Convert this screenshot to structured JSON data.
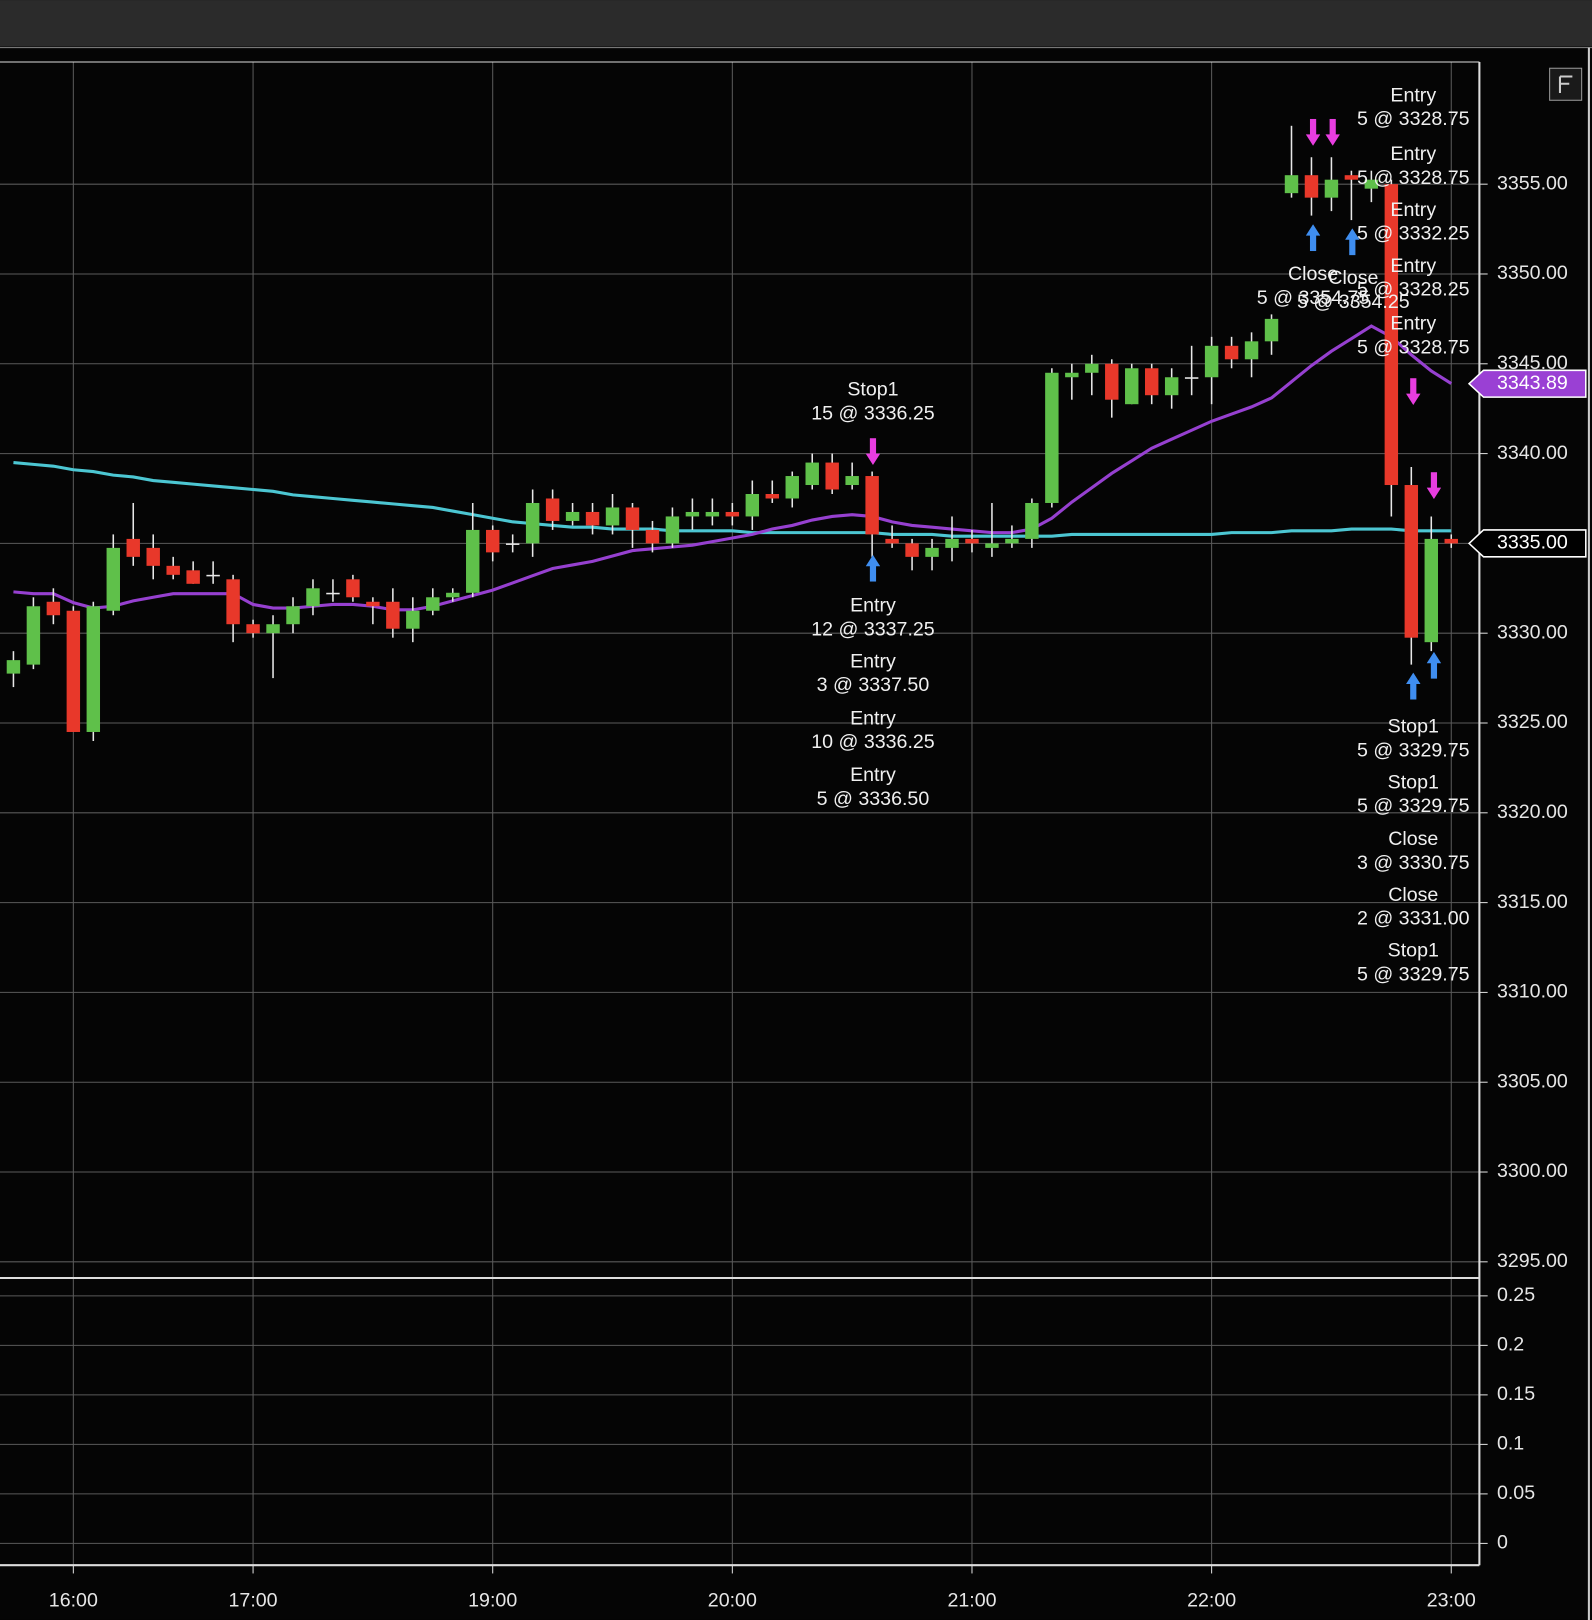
{
  "chart_data": [
    {
      "type": "candlestick",
      "categories": [
        null,
        null,
        null,
        "16:00",
        null,
        null,
        null,
        null,
        null,
        null,
        null,
        null,
        "17:00",
        null,
        null,
        null,
        null,
        null,
        null,
        null,
        null,
        null,
        null,
        null,
        "19:00",
        null,
        null,
        null,
        null,
        null,
        null,
        null,
        null,
        null,
        null,
        null,
        "20:00",
        null,
        null,
        null,
        null,
        null,
        null,
        null,
        null,
        null,
        null,
        null,
        "21:00",
        null,
        null,
        null,
        null,
        null,
        null,
        null,
        null,
        null,
        null,
        null,
        "22:00",
        null,
        null,
        null,
        null,
        null,
        null,
        null,
        null,
        null,
        null,
        null,
        "23:00"
      ],
      "open": [
        3327.75,
        3328.25,
        3331.75,
        3331.25,
        3324.5,
        3331.25,
        3335.25,
        3334.75,
        3333.75,
        3333.5,
        3333.25,
        3333,
        3330.5,
        3330,
        3330.5,
        3331.5,
        3332.25,
        3333,
        3331.75,
        3331.75,
        3330.25,
        3331.25,
        3332,
        3332.25,
        3335.75,
        3335,
        3335,
        3337.5,
        3336.25,
        3336.75,
        3336,
        3337,
        3335.75,
        3335,
        3336.5,
        3336.5,
        3336.75,
        3336.5,
        3337.75,
        3337.5,
        3338.25,
        3339.5,
        3338.25,
        3338.75,
        3335.25,
        3335,
        3334.25,
        3334.75,
        3335.25,
        3334.75,
        3335,
        3335.25,
        3337.25,
        3344.25,
        3344.5,
        3345,
        3342.75,
        3344.75,
        3343.25,
        3344.25,
        3344.25,
        3346,
        3345.25,
        3346.25,
        3354.5,
        3355.5,
        3354.25,
        3355.5,
        3354.75,
        3355,
        3338.25,
        3329.5,
        3335.25
      ],
      "high": [
        3329,
        3332,
        3332.5,
        3331.5,
        3331.75,
        3335.5,
        3337.25,
        3335.5,
        3334.25,
        3334,
        3334,
        3333.25,
        3330.75,
        3331,
        3332,
        3333,
        3333,
        3333.25,
        3332,
        3332.5,
        3332,
        3332.5,
        3332.5,
        3337.25,
        3336,
        3335.5,
        3338,
        3338,
        3337.25,
        3337.25,
        3337.75,
        3337.25,
        3336.25,
        3337,
        3337.5,
        3337.5,
        3337.25,
        3338.5,
        3338.5,
        3339,
        3340,
        3340,
        3339.5,
        3339,
        3336,
        3335.25,
        3335.25,
        3336.5,
        3335.75,
        3337.25,
        3336,
        3337.5,
        3344.75,
        3345,
        3345.5,
        3345.25,
        3345,
        3345,
        3344.75,
        3346,
        3346.5,
        3346.5,
        3346.75,
        3347.75,
        3358.25,
        3356.5,
        3356.5,
        3355.75,
        3355.75,
        3355.25,
        3339.25,
        3336.5,
        3335.5
      ],
      "low": [
        3327,
        3328,
        3330.5,
        3324.5,
        3324,
        3331,
        3333.75,
        3333,
        3333,
        3332.75,
        3332.75,
        3329.5,
        3329.75,
        3327.5,
        3330,
        3331,
        3331.75,
        3331.75,
        3330.5,
        3329.75,
        3329.5,
        3331,
        3331.75,
        3332,
        3334,
        3334.5,
        3334.25,
        3335.75,
        3336,
        3335.5,
        3335.5,
        3334.75,
        3334.5,
        3334.75,
        3335.75,
        3336,
        3336,
        3335.75,
        3337.25,
        3337,
        3338,
        3337.75,
        3338,
        3334.25,
        3334.75,
        3333.5,
        3333.5,
        3334,
        3334.5,
        3334.25,
        3334.75,
        3334.75,
        3337,
        3343,
        3343.25,
        3342,
        3342.75,
        3342.75,
        3342.5,
        3343.25,
        3342.75,
        3344.75,
        3344.25,
        3345.5,
        3354.25,
        3353.25,
        3353.5,
        3353,
        3354,
        3336.5,
        3328.25,
        3329,
        3334.75
      ],
      "close": [
        3328.5,
        3331.5,
        3331,
        3324.5,
        3331.5,
        3334.75,
        3334.25,
        3333.75,
        3333.25,
        3332.75,
        3333.25,
        3330.5,
        3330,
        3330.5,
        3331.5,
        3332.5,
        3332.25,
        3332,
        3331.5,
        3330.25,
        3331.25,
        3332,
        3332.25,
        3335.75,
        3334.5,
        3335,
        3337.25,
        3336.25,
        3336.75,
        3336,
        3337,
        3335.75,
        3335,
        3336.5,
        3336.75,
        3336.75,
        3336.5,
        3337.75,
        3337.5,
        3338.75,
        3339.5,
        3338,
        3338.75,
        3335.5,
        3335,
        3334.25,
        3334.75,
        3335.25,
        3335,
        3335,
        3335.25,
        3337.25,
        3344.5,
        3344.5,
        3345,
        3343,
        3344.75,
        3343.25,
        3344.25,
        3344.25,
        3346,
        3345.25,
        3346.25,
        3347.5,
        3355.5,
        3354.25,
        3355.25,
        3355.25,
        3355.25,
        3338.25,
        3329.75,
        3335.25,
        3335
      ],
      "up_color": "#5fc04a",
      "down_color": "#e8382a",
      "lines": [
        {
          "color": "#4cc6d2",
          "values": [
            3339.5,
            3339.4,
            3339.3,
            3339.1,
            3339.0,
            3338.8,
            3338.7,
            3338.5,
            3338.4,
            3338.3,
            3338.2,
            3338.1,
            3338.0,
            3337.9,
            3337.7,
            3337.6,
            3337.5,
            3337.4,
            3337.3,
            3337.2,
            3337.1,
            3337.0,
            3336.8,
            3336.6,
            3336.4,
            3336.2,
            3336.1,
            3336.0,
            3335.9,
            3335.9,
            3335.8,
            3335.8,
            3335.8,
            3335.7,
            3335.7,
            3335.7,
            3335.7,
            3335.6,
            3335.6,
            3335.6,
            3335.6,
            3335.6,
            3335.6,
            3335.6,
            3335.5,
            3335.5,
            3335.5,
            3335.4,
            3335.4,
            3335.4,
            3335.4,
            3335.4,
            3335.4,
            3335.5,
            3335.5,
            3335.5,
            3335.5,
            3335.5,
            3335.5,
            3335.5,
            3335.5,
            3335.6,
            3335.6,
            3335.6,
            3335.7,
            3335.7,
            3335.7,
            3335.8,
            3335.8,
            3335.8,
            3335.7,
            3335.7,
            3335.7
          ]
        },
        {
          "color": "#9640d0",
          "values": [
            3332.3,
            3332.2,
            3332.2,
            3331.7,
            3331.4,
            3331.5,
            3331.8,
            3332.0,
            3332.2,
            3332.2,
            3332.2,
            3332.2,
            3331.6,
            3331.4,
            3331.4,
            3331.5,
            3331.6,
            3331.6,
            3331.5,
            3331.3,
            3331.3,
            3331.5,
            3331.8,
            3332.1,
            3332.4,
            3332.8,
            3333.2,
            3333.6,
            3333.8,
            3334.0,
            3334.3,
            3334.6,
            3334.7,
            3334.8,
            3334.9,
            3335.1,
            3335.3,
            3335.5,
            3335.8,
            3336.0,
            3336.3,
            3336.5,
            3336.6,
            3336.5,
            3336.2,
            3336.0,
            3335.9,
            3335.8,
            3335.7,
            3335.6,
            3335.6,
            3335.8,
            3336.4,
            3337.3,
            3338.1,
            3338.9,
            3339.6,
            3340.3,
            3340.8,
            3341.3,
            3341.8,
            3342.2,
            3342.6,
            3343.1,
            3344.0,
            3344.9,
            3345.7,
            3346.4,
            3347.1,
            3346.5,
            3345.5,
            3344.6,
            3343.9
          ]
        }
      ],
      "price_tags": [
        {
          "value": 3343.89,
          "label": "3343.89",
          "color": "#9a40d4"
        },
        {
          "value": 3335,
          "label": "3335.00",
          "color": "#000000"
        }
      ],
      "annotations": [
        [
          "Entry",
          "5 @ 3328.75"
        ],
        [
          "Entry",
          "5 @ 3328.75"
        ],
        [
          "Entry",
          "5 @ 3332.25"
        ],
        [
          "Entry",
          "5 @ 3328.25"
        ],
        [
          "Entry",
          "5 @ 3328.75"
        ],
        [
          "Close",
          "5 @ 3354.75"
        ],
        [
          "Close",
          "5 @ 3354.25"
        ],
        [
          "Stop1",
          "15 @ 3336.25"
        ],
        [
          "Entry",
          "12 @ 3337.25"
        ],
        [
          "Entry",
          "3 @ 3337.50"
        ],
        [
          "Entry",
          "10 @ 3336.25"
        ],
        [
          "Entry",
          "5 @ 3336.50"
        ],
        [
          "Stop1",
          "5 @ 3329.75"
        ],
        [
          "Stop1",
          "5 @ 3329.75"
        ],
        [
          "Close",
          "3 @ 3330.75"
        ],
        [
          "Close",
          "2 @ 3331.00"
        ],
        [
          "Stop1",
          "5 @ 3329.75"
        ]
      ],
      "ylim": [
        3294.1,
        3361.8
      ],
      "yticks": [
        {
          "value": 3355,
          "label": "3355.00"
        },
        {
          "value": 3350,
          "label": "3350.00"
        },
        {
          "value": 3345,
          "label": "3345.00"
        },
        {
          "value": 3340,
          "label": "3340.00"
        },
        {
          "value": 3335,
          "label": "3335.00"
        },
        {
          "value": 3330,
          "label": "3330.00"
        },
        {
          "value": 3325,
          "label": "3325.00"
        },
        {
          "value": 3320,
          "label": "3320.00"
        },
        {
          "value": 3315,
          "label": "3315.00"
        },
        {
          "value": 3310,
          "label": "3310.00"
        },
        {
          "value": 3305,
          "label": "3305.00"
        },
        {
          "value": 3300,
          "label": "3300.00"
        },
        {
          "value": 3295,
          "label": "3295.00"
        }
      ],
      "grid": true
    },
    {
      "type": "line",
      "ylim": [
        -0.022,
        0.267
      ],
      "yticks": [
        0.25,
        0.2,
        0.15,
        0.1,
        0.05,
        0
      ],
      "grid": true
    }
  ]
}
